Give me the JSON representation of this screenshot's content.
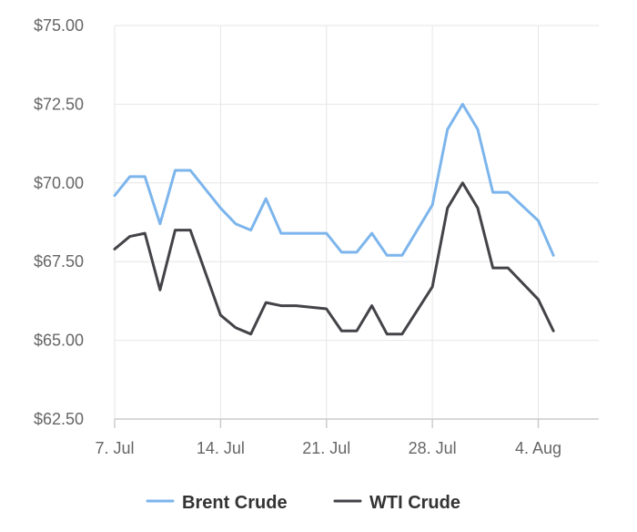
{
  "chart_data": {
    "type": "line",
    "title": "",
    "xlabel": "",
    "ylabel": "",
    "ylim": [
      62.5,
      75
    ],
    "y_ticks": [
      62.5,
      65,
      67.5,
      70,
      72.5,
      75
    ],
    "y_tick_labels": [
      "$62.50",
      "$65.00",
      "$67.50",
      "$70.00",
      "$72.50",
      "$75.00"
    ],
    "x_start": "2025-07-07",
    "x_end": "2025-08-08",
    "x_ticks": [
      "2025-07-07",
      "2025-07-14",
      "2025-07-21",
      "2025-07-28",
      "2025-08-04"
    ],
    "x_tick_labels": [
      "7. Jul",
      "14. Jul",
      "21. Jul",
      "28. Jul",
      "4. Aug"
    ],
    "grid": true,
    "legend_position": "bottom",
    "x": [
      "2025-07-07",
      "2025-07-08",
      "2025-07-09",
      "2025-07-10",
      "2025-07-11",
      "2025-07-12",
      "2025-07-14",
      "2025-07-15",
      "2025-07-16",
      "2025-07-17",
      "2025-07-18",
      "2025-07-19",
      "2025-07-21",
      "2025-07-22",
      "2025-07-23",
      "2025-07-24",
      "2025-07-25",
      "2025-07-26",
      "2025-07-28",
      "2025-07-29",
      "2025-07-30",
      "2025-07-31",
      "2025-08-01",
      "2025-08-02",
      "2025-08-04",
      "2025-08-05"
    ],
    "series": [
      {
        "name": "Brent Crude",
        "color": "#7cb5ec",
        "values": [
          69.6,
          70.2,
          70.2,
          68.7,
          70.4,
          70.4,
          69.2,
          68.7,
          68.5,
          69.5,
          68.4,
          68.4,
          68.4,
          67.8,
          67.8,
          68.4,
          67.7,
          67.7,
          69.3,
          71.7,
          72.5,
          71.7,
          69.7,
          69.7,
          68.8,
          67.7
        ]
      },
      {
        "name": "WTI Crude",
        "color": "#434348",
        "values": [
          67.9,
          68.3,
          68.4,
          66.6,
          68.5,
          68.5,
          65.8,
          65.4,
          65.2,
          66.2,
          66.1,
          66.1,
          66.0,
          65.3,
          65.3,
          66.1,
          65.2,
          65.2,
          66.7,
          69.2,
          70.0,
          69.2,
          67.3,
          67.3,
          66.3,
          65.3
        ]
      }
    ]
  }
}
